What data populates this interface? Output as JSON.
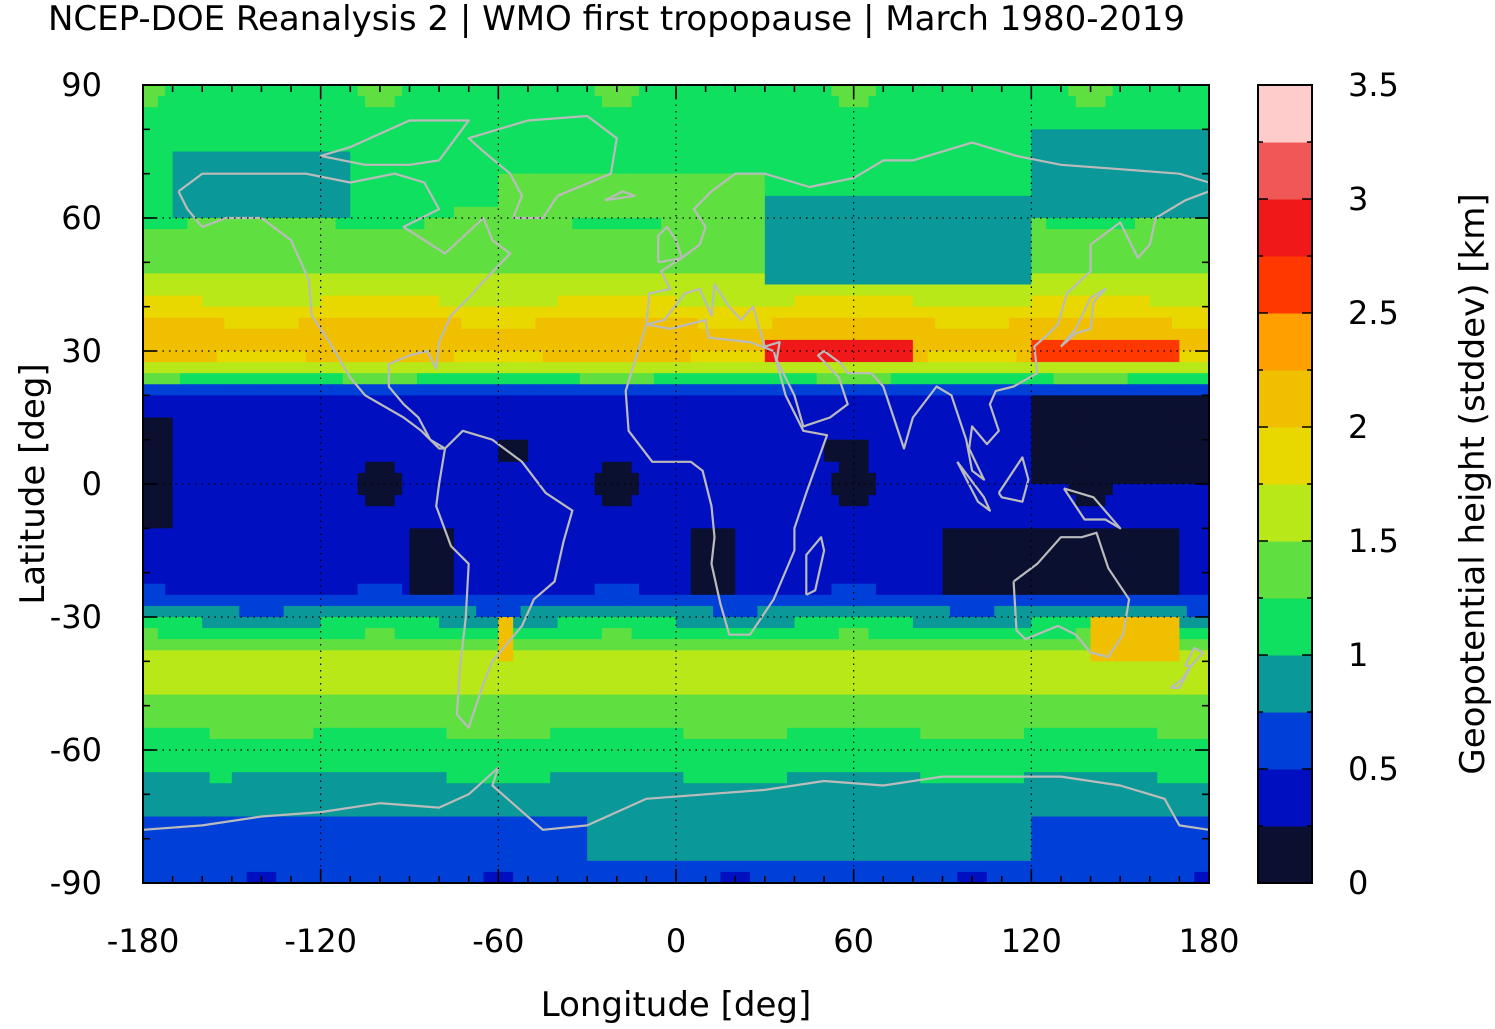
{
  "chart_data": {
    "type": "heatmap",
    "title": "NCEP-DOE Reanalysis 2 | WMO first tropopause | March 1980-2019",
    "xlabel": "Longitude [deg]",
    "ylabel": "Latitude [deg]",
    "xlim": [
      -180,
      180
    ],
    "ylim": [
      -90,
      90
    ],
    "x_ticks": [
      -180,
      -120,
      -60,
      0,
      60,
      120,
      180
    ],
    "y_ticks": [
      90,
      60,
      30,
      0,
      -30,
      -60,
      -90
    ],
    "grid": true,
    "coastlines": true,
    "colorbar": {
      "label": "Geopotential height (stddev) [km]",
      "min": 0,
      "max": 3.5,
      "step": 0.25,
      "ticks": [
        0,
        0.5,
        1,
        1.5,
        2,
        2.5,
        3,
        3.5
      ],
      "colors": [
        "#0b1030",
        "#0010c0",
        "#0040d8",
        "#0a9898",
        "#10e060",
        "#60e040",
        "#b8e818",
        "#e8d800",
        "#f0c000",
        "#ffa000",
        "#ff3800",
        "#f01818",
        "#f05858",
        "#ffcccc"
      ]
    },
    "zonal_mean_profile": {
      "lat": [
        90,
        80,
        70,
        60,
        50,
        40,
        35,
        30,
        25,
        20,
        10,
        0,
        -10,
        -20,
        -25,
        -30,
        -35,
        -40,
        -45,
        -50,
        -60,
        -70,
        -80,
        -90
      ],
      "stddev_km": [
        1.2,
        1.2,
        1.1,
        1.25,
        1.4,
        1.8,
        2.1,
        2.2,
        1.5,
        0.4,
        0.3,
        0.3,
        0.3,
        0.35,
        0.5,
        0.9,
        1.3,
        1.7,
        1.6,
        1.4,
        1.15,
        0.9,
        0.6,
        0.55
      ]
    },
    "features": [
      {
        "lon_range": [
          30,
          80
        ],
        "lat": 30,
        "stddev_km": 2.75
      },
      {
        "lon_range": [
          120,
          170
        ],
        "lat": 30,
        "stddev_km": 2.6
      },
      {
        "lon_range": [
          -180,
          -170
        ],
        "lat_range": [
          -10,
          15
        ],
        "stddev_km": 0.1
      },
      {
        "lon_range": [
          120,
          180
        ],
        "lat_range": [
          0,
          20
        ],
        "stddev_km": 0.1
      },
      {
        "lon_range": [
          90,
          170
        ],
        "lat_range": [
          -25,
          -10
        ],
        "stddev_km": 0.1
      },
      {
        "lon_range": [
          -90,
          -75
        ],
        "lat_range": [
          -25,
          -10
        ],
        "stddev_km": 0.1
      },
      {
        "lon_range": [
          5,
          20
        ],
        "lat_range": [
          -25,
          -10
        ],
        "stddev_km": 0.1
      },
      {
        "lon_range": [
          -60,
          -50
        ],
        "lat_range": [
          5,
          10
        ],
        "stddev_km": 0.1
      },
      {
        "lon_range": [
          50,
          65
        ],
        "lat_range": [
          5,
          10
        ],
        "stddev_km": 0.1
      },
      {
        "lon_range": [
          -170,
          -110
        ],
        "lat_range": [
          60,
          75
        ],
        "stddev_km": 0.9
      },
      {
        "lon_range": [
          30,
          120
        ],
        "lat_range": [
          45,
          65
        ],
        "stddev_km": 0.9
      },
      {
        "lon_range": [
          120,
          180
        ],
        "lat_range": [
          60,
          80
        ],
        "stddev_km": 0.9
      },
      {
        "lon_range": [
          -60,
          30
        ],
        "lat_range": [
          60,
          70
        ],
        "stddev_km": 1.3
      },
      {
        "lon_range": [
          -60,
          -55
        ],
        "lat_range": [
          -40,
          -30
        ],
        "stddev_km": 2.2
      },
      {
        "lon_range": [
          140,
          170
        ],
        "lat_range": [
          -40,
          -30
        ],
        "stddev_km": 2.1
      },
      {
        "lon_range": [
          -150,
          -100
        ],
        "lat_range": [
          -75,
          -65
        ],
        "stddev_km": 0.9
      },
      {
        "lon_range": [
          -30,
          120
        ],
        "lat_range": [
          -85,
          -70
        ],
        "stddev_km": 0.9
      }
    ]
  }
}
